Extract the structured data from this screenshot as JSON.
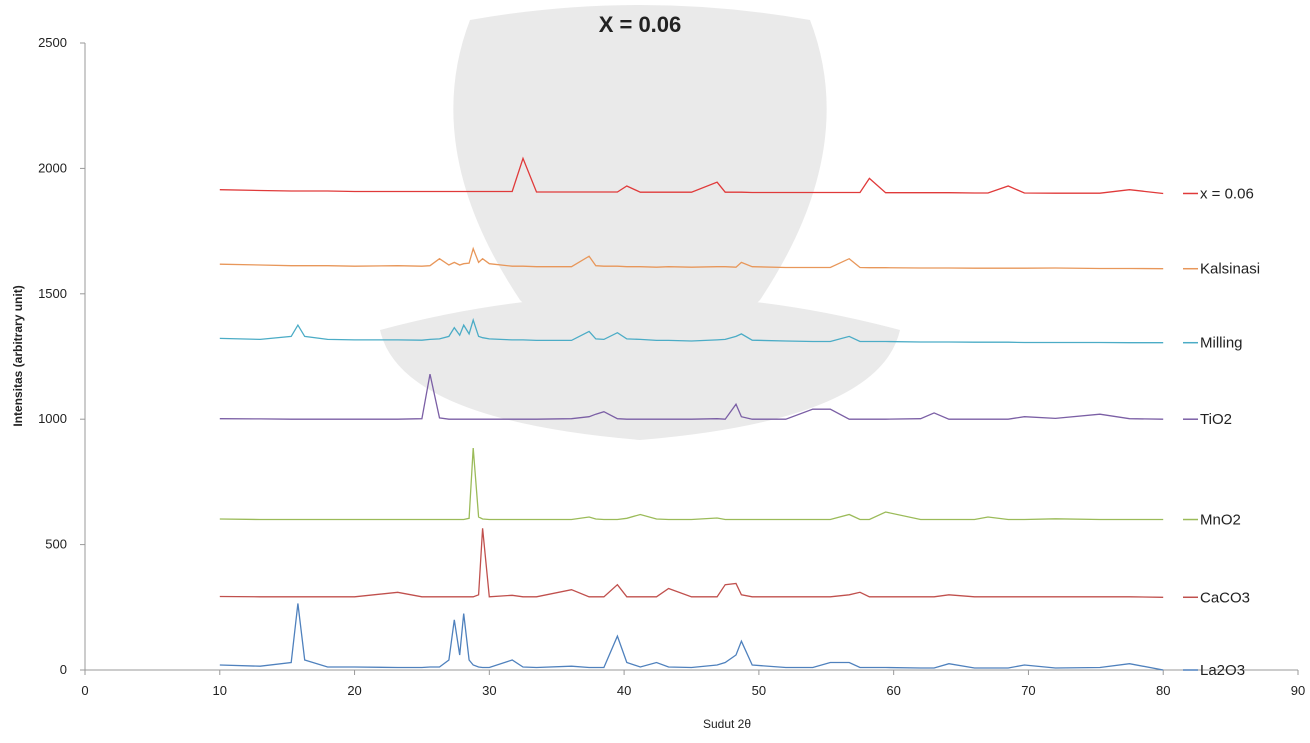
{
  "chart_data": {
    "type": "line",
    "title": "X = 0.06",
    "x_label": "Sudut 2θ",
    "y_label": "Intensitas (arbitrary unit)",
    "xlim": [
      0,
      90
    ],
    "xticks": [
      0,
      10,
      20,
      30,
      40,
      50,
      60,
      70,
      80,
      90
    ],
    "ylim": [
      0,
      2500
    ],
    "yticks": [
      0,
      500,
      1000,
      1500,
      2000,
      2500
    ],
    "grid": false,
    "legend": "right",
    "x": [
      10,
      13,
      15.3,
      15.8,
      16.3,
      18,
      20,
      23.2,
      25,
      25.6,
      26.3,
      27,
      27.4,
      27.8,
      28.1,
      28.5,
      28.8,
      29.2,
      29.5,
      30,
      31.7,
      32.5,
      33.5,
      36.1,
      37.4,
      37.9,
      38.5,
      39.5,
      40.2,
      41.2,
      42.4,
      43.3,
      45,
      46.9,
      47.5,
      48.3,
      48.7,
      49.5,
      52,
      54,
      55.3,
      56.7,
      57.5,
      58.2,
      59.4,
      62,
      63,
      64.1,
      66,
      67,
      68.5,
      69.7,
      72,
      75.3,
      77.5,
      80
    ],
    "series": [
      {
        "name": "x = 0.06",
        "color": "#e03a3a",
        "values": [
          1915,
          1912,
          1910,
          1910,
          1910,
          1910,
          1908,
          1908,
          1908,
          1908,
          1908,
          1908,
          1908,
          1908,
          1908,
          1908,
          1908,
          1908,
          1908,
          1908,
          1908,
          2040,
          1906,
          1906,
          1906,
          1906,
          1906,
          1906,
          1930,
          1905,
          1905,
          1905,
          1905,
          1945,
          1905,
          1905,
          1905,
          1904,
          1904,
          1904,
          1904,
          1904,
          1904,
          1960,
          1903,
          1903,
          1903,
          1903,
          1902,
          1902,
          1930,
          1902,
          1901,
          1901,
          1915,
          1900
        ]
      },
      {
        "name": "Kalsinasi",
        "color": "#e8975a",
        "values": [
          1618,
          1615,
          1612,
          1612,
          1612,
          1612,
          1610,
          1612,
          1610,
          1612,
          1640,
          1615,
          1625,
          1615,
          1620,
          1622,
          1680,
          1625,
          1640,
          1620,
          1610,
          1610,
          1608,
          1608,
          1650,
          1612,
          1610,
          1610,
          1608,
          1608,
          1606,
          1608,
          1606,
          1608,
          1608,
          1606,
          1625,
          1608,
          1605,
          1605,
          1605,
          1640,
          1605,
          1604,
          1604,
          1603,
          1603,
          1603,
          1602,
          1602,
          1602,
          1602,
          1603,
          1601,
          1601,
          1600
        ]
      },
      {
        "name": "Milling",
        "color": "#4bacc6",
        "values": [
          1322,
          1318,
          1330,
          1375,
          1330,
          1318,
          1316,
          1316,
          1315,
          1318,
          1320,
          1330,
          1365,
          1335,
          1375,
          1340,
          1395,
          1330,
          1325,
          1320,
          1316,
          1316,
          1314,
          1314,
          1350,
          1320,
          1318,
          1345,
          1320,
          1318,
          1314,
          1314,
          1312,
          1316,
          1318,
          1330,
          1340,
          1315,
          1312,
          1310,
          1310,
          1330,
          1310,
          1310,
          1310,
          1308,
          1308,
          1308,
          1307,
          1307,
          1307,
          1306,
          1306,
          1306,
          1305,
          1305
        ]
      },
      {
        "name": "TiO2",
        "color": "#7b5fa5",
        "values": [
          1002,
          1001,
          1000,
          1000,
          1000,
          1000,
          1000,
          1000,
          1002,
          1180,
          1005,
          1000,
          1000,
          1000,
          1000,
          1000,
          1000,
          1000,
          1000,
          1000,
          1000,
          1000,
          1000,
          1002,
          1010,
          1020,
          1030,
          1002,
          1000,
          1000,
          1000,
          1000,
          1000,
          1002,
          1000,
          1060,
          1010,
          1000,
          1000,
          1040,
          1040,
          1000,
          1000,
          1000,
          1000,
          1002,
          1025,
          1000,
          1000,
          1000,
          1000,
          1010,
          1003,
          1020,
          1002,
          1000
        ]
      },
      {
        "name": "MnO2",
        "color": "#9bbb59",
        "values": [
          602,
          600,
          600,
          600,
          600,
          600,
          600,
          600,
          600,
          600,
          600,
          600,
          600,
          600,
          600,
          605,
          885,
          610,
          602,
          600,
          600,
          600,
          600,
          600,
          610,
          602,
          600,
          600,
          605,
          620,
          602,
          600,
          600,
          606,
          600,
          600,
          600,
          600,
          600,
          600,
          600,
          620,
          600,
          600,
          630,
          600,
          600,
          600,
          600,
          610,
          600,
          600,
          603,
          600,
          600,
          600
        ]
      },
      {
        "name": "CaCO3",
        "color": "#c0504d",
        "values": [
          293,
          292,
          292,
          292,
          292,
          292,
          292,
          310,
          292,
          292,
          292,
          292,
          292,
          292,
          292,
          292,
          292,
          300,
          565,
          292,
          298,
          292,
          292,
          320,
          292,
          292,
          292,
          340,
          292,
          292,
          292,
          325,
          292,
          292,
          340,
          345,
          300,
          292,
          292,
          292,
          292,
          300,
          310,
          292,
          292,
          292,
          292,
          300,
          292,
          292,
          292,
          292,
          292,
          292,
          292,
          290
        ]
      },
      {
        "name": "La2O3",
        "color": "#4f81bd",
        "values": [
          20,
          15,
          30,
          265,
          40,
          12,
          12,
          10,
          10,
          12,
          12,
          40,
          200,
          60,
          225,
          40,
          20,
          12,
          10,
          10,
          40,
          12,
          10,
          15,
          10,
          10,
          10,
          135,
          30,
          12,
          30,
          12,
          10,
          20,
          30,
          60,
          115,
          20,
          10,
          10,
          30,
          30,
          10,
          10,
          10,
          8,
          8,
          25,
          8,
          8,
          8,
          20,
          8,
          10,
          25,
          0
        ]
      }
    ]
  }
}
